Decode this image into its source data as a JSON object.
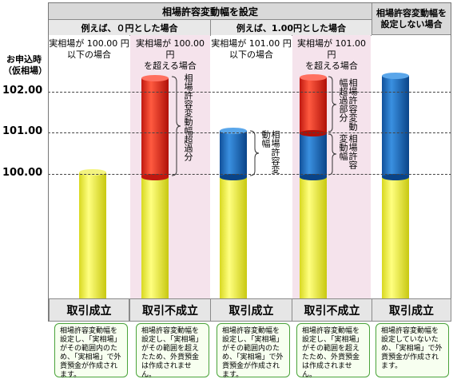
{
  "header": {
    "with_range": "相場許容変動幅を設定",
    "no_range": "相場許容変動幅を設定しない場合",
    "example_zero": "例えば、０円とした場合",
    "example_one": "例えば、1.00円とした場合"
  },
  "yaxis": {
    "label_line1": "お申込時",
    "label_line2": "（仮相場）",
    "ticks": [
      "102.00",
      "101.00",
      "100.00"
    ]
  },
  "columns": [
    {
      "caption1": "実相場が 100.00 円",
      "caption2": "以下の場合",
      "result": "取引成立",
      "note": "相場許容変動幅を設定し、「実相場」がその範囲内のため、「実相場」で外貨預金が作成されます。"
    },
    {
      "caption1": "実相場が 100.00 円",
      "caption2": "を超える場合",
      "result": "取引不成立",
      "note": "相場許容変動幅を設定し、「実相場」がその範囲を超えたため、外貨預金は作成されません。"
    },
    {
      "caption1": "実相場が 101.00 円",
      "caption2": "以下の場合",
      "result": "取引成立",
      "note": "相場許容変動幅を設定し、「実相場」がその範囲内のため、「実相場」で外貨預金が作成されます。"
    },
    {
      "caption1": "実相場が 101.00 円",
      "caption2": "を超える場合",
      "result": "取引不成立",
      "note": "相場許容変動幅を設定し、「実相場」がその範囲を超えたため、外貨預金は作成されません。"
    },
    {
      "caption1": "",
      "caption2": "",
      "result": "取引成立",
      "note": "相場許容変動幅を設定していないため、「実相場」で外貨預金が作成されます。"
    }
  ],
  "annotations": {
    "col2_excess": "相場許容変動幅超過分",
    "col3_range": "相場許容変動幅",
    "col4_excess": "相場許容変動幅超過部分",
    "col4_range": "相場許容変動幅"
  },
  "colors": {
    "yellow": "#ecec3a",
    "red": "#e8261c",
    "blue": "#1d6fbf",
    "pink_bg": "#f5e3ec",
    "note_border": "#4aa33a"
  }
}
